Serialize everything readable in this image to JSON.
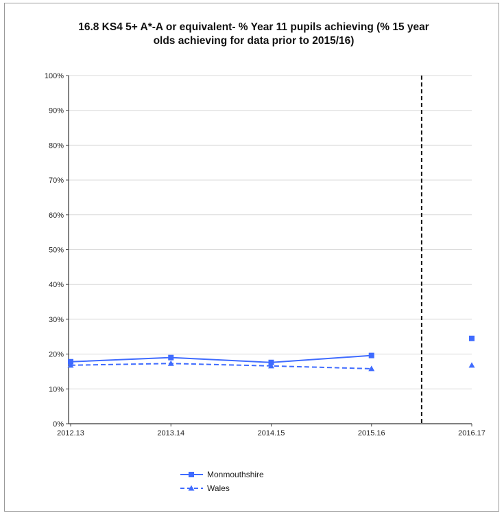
{
  "chart_data": {
    "type": "line",
    "title_line1": "16.8  KS4 5+ A*-A or equivalent- % Year 11 pupils achieving (% 15 year",
    "title_line2": "olds achieving for data prior to 2015/16)",
    "categories": [
      "2012.13",
      "2013.14",
      "2014.15",
      "2015.16",
      "2016.17"
    ],
    "yticks": [
      "0%",
      "10%",
      "20%",
      "30%",
      "40%",
      "50%",
      "60%",
      "70%",
      "80%",
      "90%",
      "100%"
    ],
    "ylim": [
      0,
      100
    ],
    "grid": true,
    "legend": "bottom-left",
    "series_break_after": "2015.16",
    "series": [
      {
        "name": "Monmouthshire",
        "style": "solid",
        "marker": "square",
        "color": "#3f6bff",
        "values": [
          17.8,
          19.0,
          17.6,
          19.6,
          24.5
        ]
      },
      {
        "name": "Wales",
        "style": "dashed",
        "marker": "triangle",
        "color": "#3f6bff",
        "values": [
          16.8,
          17.3,
          16.6,
          15.8,
          16.8
        ]
      }
    ]
  }
}
